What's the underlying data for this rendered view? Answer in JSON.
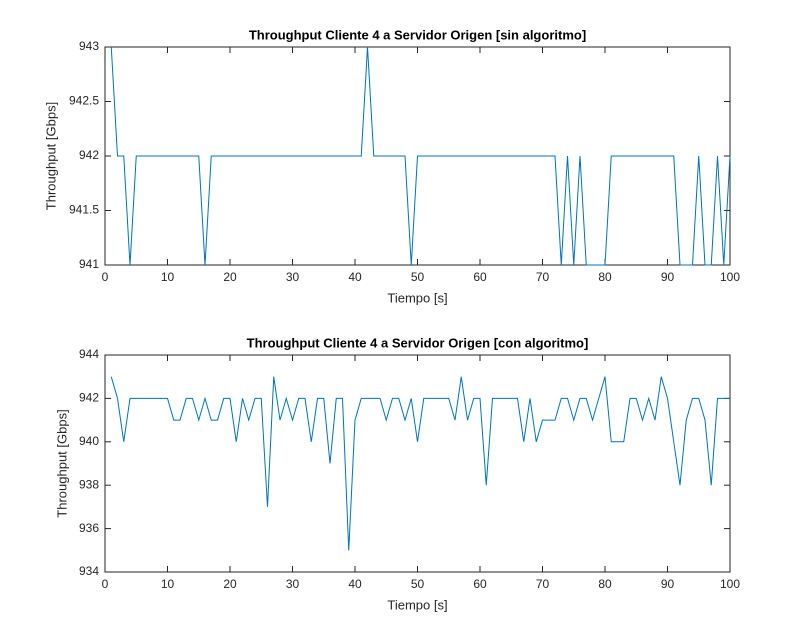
{
  "chart_data": [
    {
      "type": "line",
      "title": "Throughput Cliente 4 a Servidor Origen [sin algoritmo]",
      "xlabel": "Tiempo [s]",
      "ylabel": "Throughput [Gbps]",
      "x": [
        1,
        2,
        3,
        4,
        5,
        6,
        7,
        8,
        9,
        10,
        11,
        12,
        13,
        14,
        15,
        16,
        17,
        18,
        19,
        20,
        21,
        22,
        23,
        24,
        25,
        26,
        27,
        28,
        29,
        30,
        31,
        32,
        33,
        34,
        35,
        36,
        37,
        38,
        39,
        40,
        41,
        42,
        43,
        44,
        45,
        46,
        47,
        48,
        49,
        50,
        51,
        52,
        53,
        54,
        55,
        56,
        57,
        58,
        59,
        60,
        61,
        62,
        63,
        64,
        65,
        66,
        67,
        68,
        69,
        70,
        71,
        72,
        73,
        74,
        75,
        76,
        77,
        78,
        79,
        80,
        81,
        82,
        83,
        84,
        85,
        86,
        87,
        88,
        89,
        90,
        91,
        92,
        93,
        94,
        95,
        96,
        97,
        98,
        99,
        100
      ],
      "series": [
        {
          "color": "#0072bd",
          "values": [
            943,
            942,
            942,
            941,
            942,
            942,
            942,
            942,
            942,
            942,
            942,
            942,
            942,
            942,
            942,
            941,
            942,
            942,
            942,
            942,
            942,
            942,
            942,
            942,
            942,
            942,
            942,
            942,
            942,
            942,
            942,
            942,
            942,
            942,
            942,
            942,
            942,
            942,
            942,
            942,
            942,
            943,
            942,
            942,
            942,
            942,
            942,
            942,
            941,
            942,
            942,
            942,
            942,
            942,
            942,
            942,
            942,
            942,
            942,
            942,
            942,
            942,
            942,
            942,
            942,
            942,
            942,
            942,
            942,
            942,
            942,
            942,
            941,
            942,
            941,
            942,
            941,
            941,
            941,
            941,
            942,
            942,
            942,
            942,
            942,
            942,
            942,
            942,
            942,
            942,
            942,
            941,
            941,
            941,
            942,
            941,
            941,
            942,
            941,
            942
          ]
        }
      ],
      "xlim": [
        0,
        100
      ],
      "ylim": [
        941,
        943
      ],
      "xticks": [
        0,
        10,
        20,
        30,
        40,
        50,
        60,
        70,
        80,
        90,
        100
      ],
      "yticks": [
        941,
        941.5,
        942,
        942.5,
        943
      ]
    },
    {
      "type": "line",
      "title": "Throughput Cliente 4 a Servidor Origen [con algoritmo]",
      "xlabel": "Tiempo [s]",
      "ylabel": "Throughput [Gbps]",
      "x": [
        1,
        2,
        3,
        4,
        5,
        6,
        7,
        8,
        9,
        10,
        11,
        12,
        13,
        14,
        15,
        16,
        17,
        18,
        19,
        20,
        21,
        22,
        23,
        24,
        25,
        26,
        27,
        28,
        29,
        30,
        31,
        32,
        33,
        34,
        35,
        36,
        37,
        38,
        39,
        40,
        41,
        42,
        43,
        44,
        45,
        46,
        47,
        48,
        49,
        50,
        51,
        52,
        53,
        54,
        55,
        56,
        57,
        58,
        59,
        60,
        61,
        62,
        63,
        64,
        65,
        66,
        67,
        68,
        69,
        70,
        71,
        72,
        73,
        74,
        75,
        76,
        77,
        78,
        79,
        80,
        81,
        82,
        83,
        84,
        85,
        86,
        87,
        88,
        89,
        90,
        91,
        92,
        93,
        94,
        95,
        96,
        97,
        98,
        99,
        100
      ],
      "series": [
        {
          "color": "#0072bd",
          "values": [
            943,
            942,
            940,
            942,
            942,
            942,
            942,
            942,
            942,
            942,
            941,
            941,
            942,
            942,
            941,
            942,
            941,
            941,
            942,
            942,
            940,
            942,
            941,
            942,
            942,
            937,
            943,
            941,
            942,
            941,
            942,
            942,
            940,
            942,
            942,
            939,
            942,
            942,
            935,
            941,
            942,
            942,
            942,
            942,
            941,
            942,
            942,
            941,
            942,
            940,
            942,
            942,
            942,
            942,
            942,
            941,
            943,
            941,
            942,
            942,
            938,
            942,
            942,
            942,
            942,
            942,
            940,
            942,
            940,
            941,
            941,
            941,
            942,
            942,
            941,
            942,
            942,
            941,
            942,
            943,
            940,
            940,
            940,
            942,
            942,
            941,
            942,
            941,
            943,
            942,
            940,
            938,
            941,
            942,
            942,
            941,
            938,
            942,
            942,
            942
          ]
        }
      ],
      "xlim": [
        0,
        100
      ],
      "ylim": [
        934,
        944
      ],
      "xticks": [
        0,
        10,
        20,
        30,
        40,
        50,
        60,
        70,
        80,
        90,
        100
      ],
      "yticks": [
        934,
        936,
        938,
        940,
        942,
        944
      ]
    }
  ]
}
